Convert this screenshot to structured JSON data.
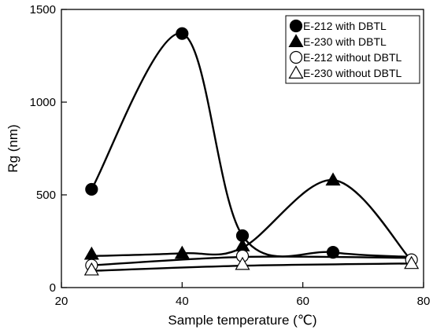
{
  "chart_data": {
    "type": "scatter",
    "title": "",
    "xlabel": "Sample temperature (℃)",
    "ylabel": "Rg  (nm)",
    "xlim": [
      20,
      80
    ],
    "ylim": [
      0,
      1500
    ],
    "xticks": [
      "20",
      "40",
      "60",
      "80"
    ],
    "yticks": [
      "0",
      "500",
      "1000",
      "1500"
    ],
    "grid": false,
    "legend_position": "top-right",
    "series": [
      {
        "name": "E-212 with DBTL",
        "marker": "filled-circle",
        "x": [
          25,
          40,
          50,
          65
        ],
        "y": [
          530,
          1370,
          280,
          190
        ],
        "curve_x": [
          25,
          40,
          50,
          65,
          78
        ],
        "curve_y": [
          530,
          1370,
          280,
          190,
          165
        ]
      },
      {
        "name": "E-230 with DBTL",
        "marker": "filled-triangle",
        "x": [
          25,
          40,
          50,
          65
        ],
        "y": [
          180,
          185,
          225,
          580
        ],
        "curve_x": [
          25,
          40,
          50,
          65,
          78
        ],
        "curve_y": [
          170,
          185,
          215,
          580,
          145
        ]
      },
      {
        "name": "E-212 without DBTL",
        "marker": "open-circle",
        "x": [
          25,
          50,
          78
        ],
        "y": [
          120,
          170,
          150
        ],
        "curve_x": [
          25,
          50,
          78
        ],
        "curve_y": [
          120,
          165,
          160
        ]
      },
      {
        "name": "E-230 without DBTL",
        "marker": "open-triangle",
        "x": [
          25,
          50,
          78
        ],
        "y": [
          95,
          125,
          130
        ],
        "curve_x": [
          25,
          50,
          78
        ],
        "curve_y": [
          90,
          118,
          130
        ]
      }
    ]
  }
}
